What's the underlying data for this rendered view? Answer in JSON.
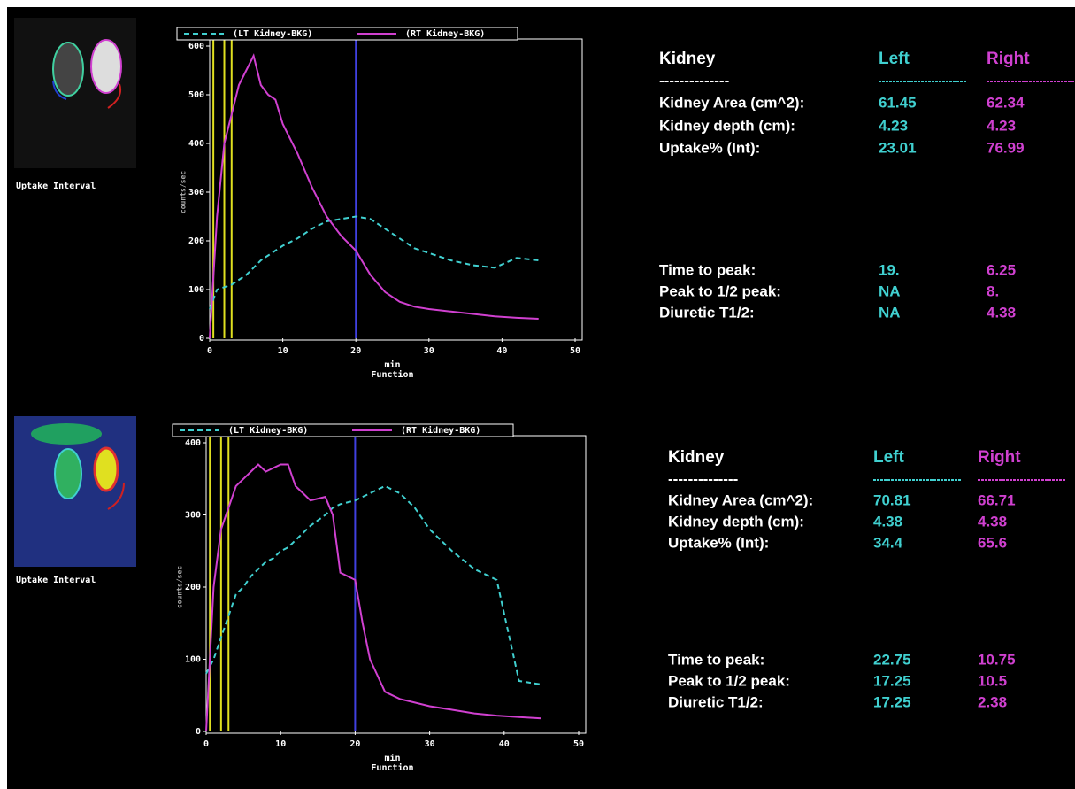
{
  "chart_data": [
    {
      "type": "line",
      "x_label": "min",
      "caption": "Function",
      "y_label": "counts/sec",
      "x": [
        0,
        1,
        2,
        3,
        4,
        5,
        6,
        7,
        8,
        9,
        10,
        12,
        14,
        16,
        18,
        20,
        22,
        24,
        26,
        28,
        30,
        33,
        36,
        39,
        42,
        45
      ],
      "series": [
        {
          "name": "(LT Kidney-BKG)",
          "color": "#40d0d0",
          "dashed": true,
          "values": [
            60,
            100,
            105,
            110,
            120,
            130,
            145,
            160,
            170,
            180,
            190,
            205,
            225,
            240,
            245,
            250,
            245,
            225,
            205,
            185,
            175,
            160,
            150,
            145,
            165,
            160
          ]
        },
        {
          "name": "(RT Kidney-BKG)",
          "color": "#d040d0",
          "dashed": false,
          "values": [
            0,
            250,
            400,
            460,
            520,
            550,
            580,
            520,
            500,
            490,
            440,
            380,
            310,
            250,
            210,
            180,
            130,
            95,
            75,
            65,
            60,
            55,
            50,
            45,
            42,
            40
          ]
        }
      ],
      "vlines": [
        {
          "x": 0.5,
          "color": "#e0e020"
        },
        {
          "x": 2,
          "color": "#e0e020"
        },
        {
          "x": 3,
          "color": "#e0e020"
        },
        {
          "x": 20,
          "color": "#4040e0"
        }
      ],
      "xlim": [
        0,
        50
      ],
      "xticks": [
        0,
        10,
        20,
        30,
        40,
        50
      ],
      "ylim": [
        0,
        600
      ],
      "yticks": [
        0,
        100,
        200,
        300,
        400,
        500,
        600
      ]
    },
    {
      "type": "line",
      "x_label": "min",
      "caption": "Function",
      "y_label": "counts/sec",
      "x": [
        0,
        1,
        2,
        3,
        4,
        5,
        6,
        7,
        8,
        9,
        10,
        11,
        12,
        13,
        14,
        16,
        17,
        18,
        20,
        21,
        22,
        24,
        26,
        28,
        30,
        33,
        36,
        39,
        42,
        45
      ],
      "series": [
        {
          "name": "(LT Kidney-BKG)",
          "color": "#40d0d0",
          "dashed": true,
          "values": [
            80,
            100,
            130,
            160,
            190,
            200,
            215,
            225,
            235,
            240,
            250,
            255,
            265,
            275,
            285,
            300,
            310,
            315,
            320,
            325,
            330,
            340,
            330,
            310,
            280,
            250,
            225,
            210,
            70,
            65
          ]
        },
        {
          "name": "(RT Kidney-BKG)",
          "color": "#d040d0",
          "dashed": false,
          "values": [
            0,
            200,
            280,
            310,
            340,
            350,
            360,
            370,
            360,
            365,
            370,
            370,
            340,
            330,
            320,
            325,
            300,
            220,
            210,
            150,
            100,
            55,
            45,
            40,
            35,
            30,
            25,
            22,
            20,
            18
          ]
        }
      ],
      "vlines": [
        {
          "x": 0.5,
          "color": "#e0e020"
        },
        {
          "x": 2,
          "color": "#e0e020"
        },
        {
          "x": 3,
          "color": "#e0e020"
        },
        {
          "x": 20,
          "color": "#4040e0"
        }
      ],
      "xlim": [
        0,
        50
      ],
      "xticks": [
        0,
        10,
        20,
        30,
        40,
        50
      ],
      "ylim": [
        0,
        400
      ],
      "yticks": [
        0,
        100,
        200,
        300,
        400
      ]
    }
  ],
  "panels": [
    {
      "image_label": "Uptake Interval",
      "table": {
        "header": [
          "Kidney",
          "Left",
          "Right"
        ],
        "separator": "--------------",
        "rows": [
          [
            "Kidney Area (cm^2):",
            "61.45",
            "62.34"
          ],
          [
            "Kidney depth (cm):",
            "4.23",
            "4.23"
          ],
          [
            "Uptake% (Int):",
            "23.01",
            "76.99"
          ]
        ],
        "timing": [
          [
            "Time to peak:",
            "19.",
            "6.25"
          ],
          [
            "Peak to 1/2 peak:",
            "NA",
            "8."
          ],
          [
            "Diuretic T1/2:",
            "NA",
            "4.38"
          ]
        ]
      }
    },
    {
      "image_label": "Uptake Interval",
      "table": {
        "header": [
          "Kidney",
          "Left",
          "Right"
        ],
        "separator": "--------------",
        "rows": [
          [
            "Kidney Area (cm^2):",
            "70.81",
            "66.71"
          ],
          [
            "Kidney depth (cm):",
            "4.38",
            "4.38"
          ],
          [
            "Uptake% (Int):",
            "34.4",
            "65.6"
          ]
        ],
        "timing": [
          [
            "Time to peak:",
            "22.75",
            "10.75"
          ],
          [
            "Peak to 1/2 peak:",
            "17.25",
            "10.5"
          ],
          [
            "Diuretic T1/2:",
            "17.25",
            "2.38"
          ]
        ]
      }
    }
  ]
}
